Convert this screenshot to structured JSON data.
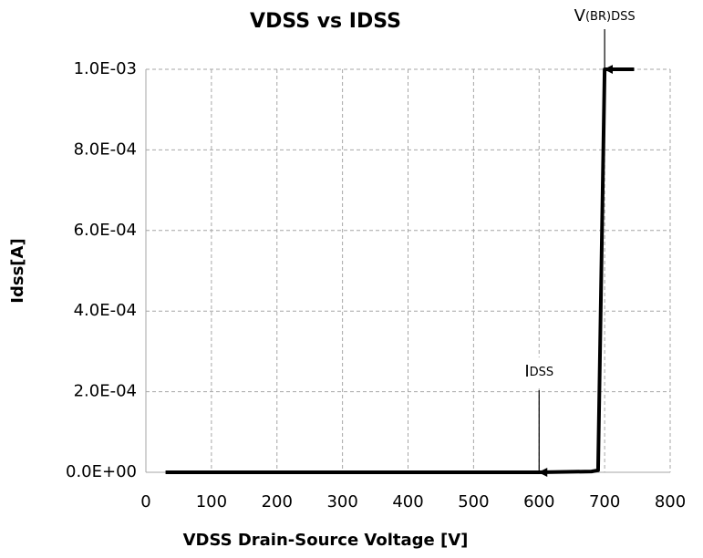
{
  "chart_data": {
    "type": "line",
    "title": "VDSS vs IDSS",
    "x_label": "VDSS Drain-Source Voltage [V]",
    "y_label": "Idss[A]",
    "x": [
      30,
      600,
      680,
      690,
      700,
      745
    ],
    "series": [
      {
        "name": "Idss",
        "color": "#000000",
        "values": [
          0,
          0,
          2e-06,
          5e-06,
          0.001,
          0.001
        ]
      }
    ],
    "xlim": [
      0,
      800
    ],
    "xticks": [
      0,
      100,
      200,
      300,
      400,
      500,
      600,
      700,
      800
    ],
    "ylim": [
      0,
      0.001
    ],
    "yticks": [
      {
        "value": 0,
        "label": "0.0E+00"
      },
      {
        "value": 0.0002,
        "label": "2.0E-04"
      },
      {
        "value": 0.0004,
        "label": "4.0E-04"
      },
      {
        "value": 0.0006,
        "label": "6.0E-04"
      },
      {
        "value": 0.0008,
        "label": "8.0E-04"
      },
      {
        "value": 0.001,
        "label": "1.0E-03"
      }
    ],
    "grid": true,
    "annotations": [
      {
        "text": "V",
        "subtext": "(BR)DSS",
        "x": 700,
        "y": 0.001
      },
      {
        "text": "I",
        "subtext": "DSS",
        "x": 600,
        "y": 0
      }
    ]
  }
}
